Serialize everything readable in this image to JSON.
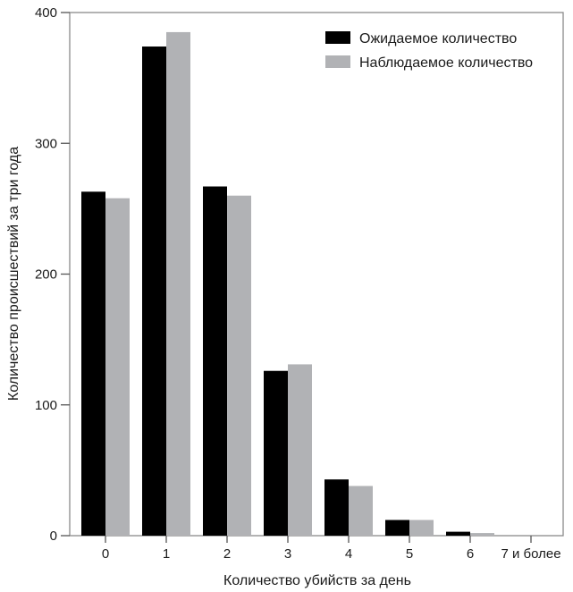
{
  "chart_data": {
    "type": "bar",
    "title": "",
    "xlabel": "Количество убийств за день",
    "ylabel": "Количество происшествий за три года",
    "categories": [
      "0",
      "1",
      "2",
      "3",
      "4",
      "5",
      "6",
      "7 и более"
    ],
    "ylim": [
      0,
      400
    ],
    "yticks": [
      0,
      100,
      200,
      300,
      400
    ],
    "grid": false,
    "legend": "top-right",
    "series": [
      {
        "name": "Ожидаемое количество",
        "color": "#000000",
        "values": [
          263,
          374,
          267,
          126,
          43,
          12,
          3,
          0
        ]
      },
      {
        "name": "Наблюдаемое количество",
        "color": "#b1b2b5",
        "values": [
          258,
          385,
          260,
          131,
          38,
          12,
          2,
          0
        ]
      }
    ]
  }
}
